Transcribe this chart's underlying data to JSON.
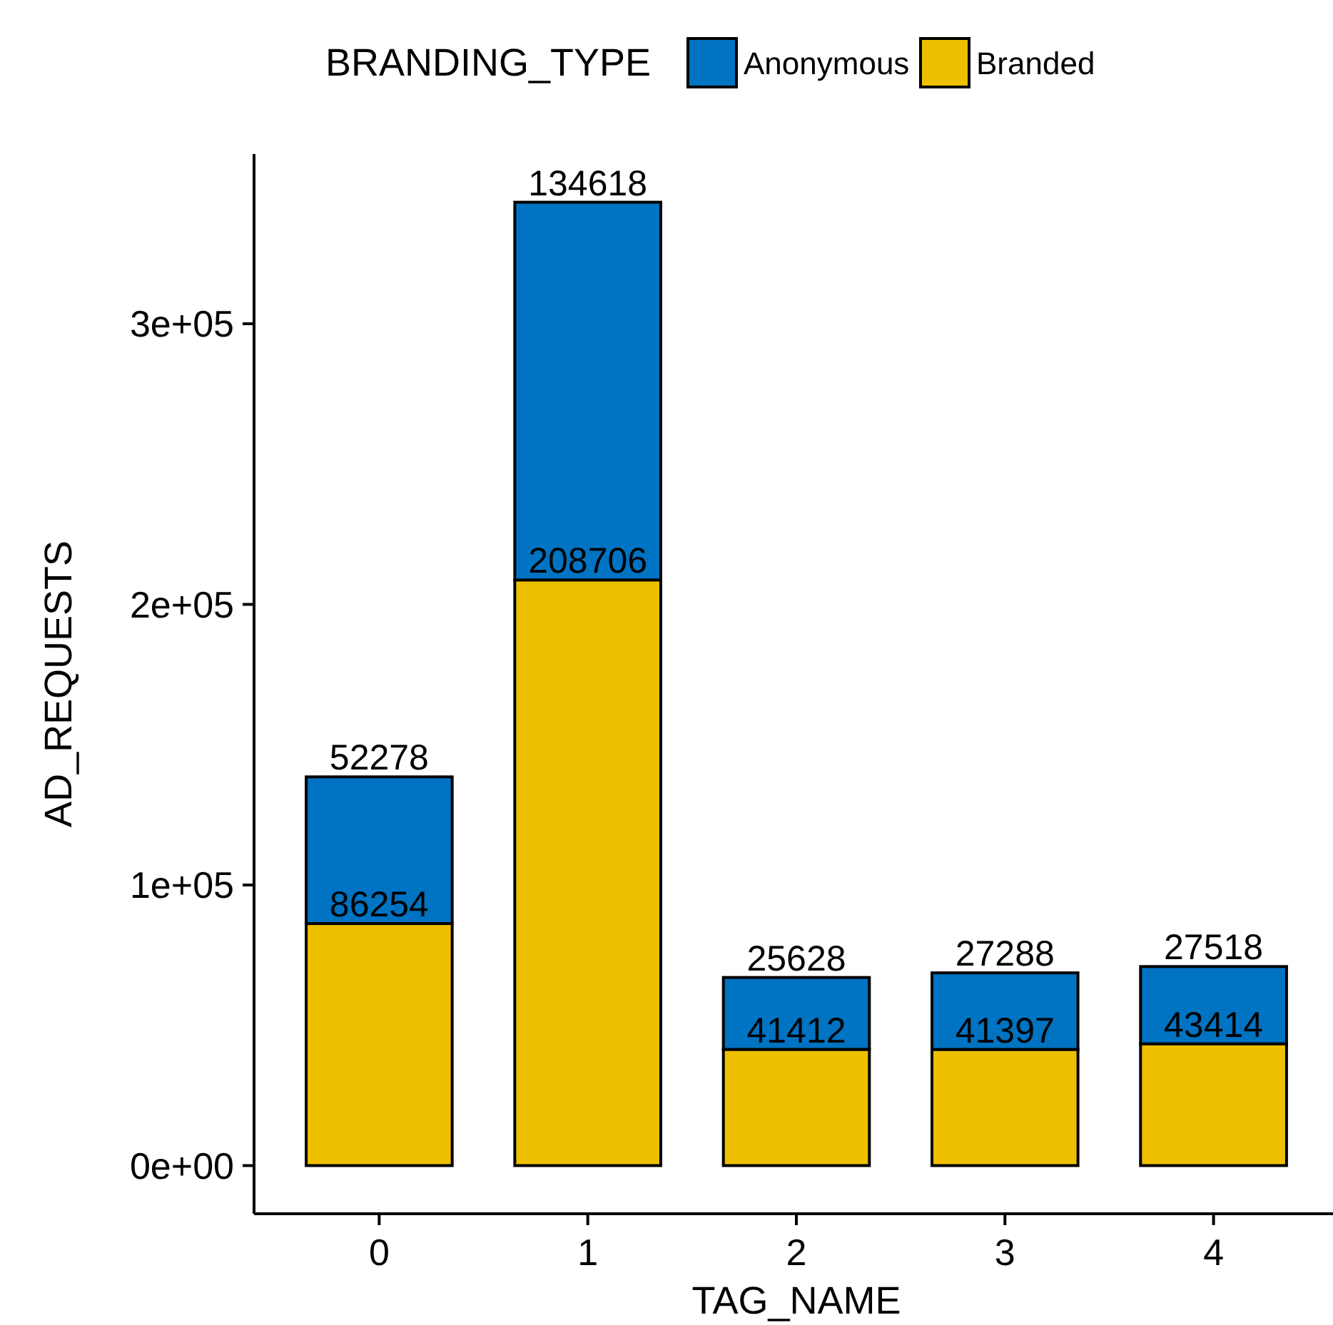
{
  "chart_data": {
    "type": "bar",
    "stacked": true,
    "xlabel": "TAG_NAME",
    "ylabel": "AD_REQUESTS",
    "legend_title": "BRANDING_TYPE",
    "legend": "top",
    "grid": false,
    "data_labels": true,
    "categories": [
      "0",
      "1",
      "2",
      "3",
      "4"
    ],
    "series": [
      {
        "name": "Branded",
        "color": "#efc000",
        "values": [
          86254,
          208706,
          41412,
          41397,
          43414
        ]
      },
      {
        "name": "Anonymous",
        "color": "#0073c2",
        "values": [
          52278,
          134618,
          25628,
          27288,
          27518
        ]
      }
    ],
    "ylim": [
      -17166,
      360490
    ],
    "yticks": [
      {
        "value": 0,
        "label": "0e+00"
      },
      {
        "value": 100000,
        "label": "1e+05"
      },
      {
        "value": 200000,
        "label": "2e+05"
      },
      {
        "value": 300000,
        "label": "3e+05"
      }
    ]
  }
}
